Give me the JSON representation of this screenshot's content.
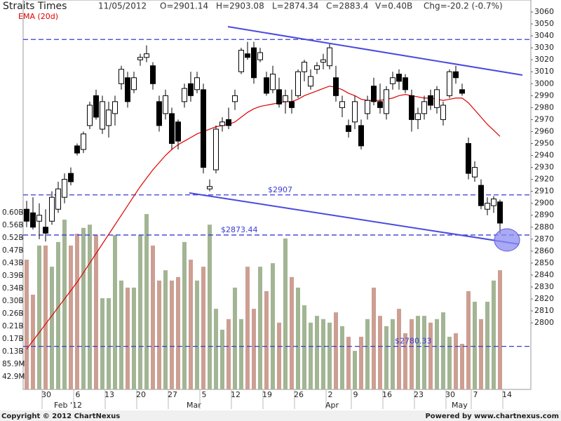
{
  "chart_data": {
    "type": "candlestick",
    "title": "Straits Times",
    "header": [
      "11/05/2012",
      "O=2901.14",
      "H=2903.08",
      "L=2874.34",
      "C=2883.4",
      "V=0.40B",
      "Chg=-20.2 (-0.7%)"
    ],
    "categories": [
      null,
      null,
      null,
      "30",
      null,
      null,
      null,
      null,
      "6",
      null,
      null,
      null,
      null,
      "13",
      null,
      null,
      null,
      null,
      "20",
      null,
      null,
      null,
      null,
      "27",
      null,
      null,
      null,
      null,
      "5",
      null,
      null,
      null,
      null,
      "12",
      null,
      null,
      null,
      null,
      "19",
      null,
      null,
      null,
      null,
      "26",
      null,
      null,
      null,
      null,
      "2",
      null,
      null,
      null,
      "9",
      null,
      null,
      null,
      null,
      "16",
      null,
      null,
      null,
      null,
      "23",
      null,
      null,
      null,
      null,
      "30",
      null,
      null,
      null,
      "7",
      null,
      null,
      null,
      null,
      "14"
    ],
    "months": [
      null,
      null,
      null,
      null,
      null,
      "Feb '12",
      null,
      null,
      null,
      null,
      null,
      null,
      null,
      null,
      null,
      null,
      null,
      null,
      null,
      null,
      null,
      null,
      null,
      null,
      null,
      null,
      "Mar",
      null,
      null,
      null,
      null,
      null,
      null,
      null,
      null,
      null,
      null,
      null,
      null,
      null,
      null,
      null,
      null,
      null,
      null,
      null,
      null,
      null,
      "Apr",
      null,
      null,
      null,
      null,
      null,
      null,
      null,
      null,
      null,
      null,
      null,
      null,
      null,
      null,
      null,
      null,
      null,
      null,
      null,
      "May",
      null,
      null,
      null,
      null,
      null,
      null,
      null,
      null
    ],
    "ohlc": [
      [
        2895,
        2902,
        2880,
        2885
      ],
      [
        2892,
        2905,
        2878,
        2880
      ],
      [
        2885,
        2900,
        2870,
        2890
      ],
      [
        2880,
        2895,
        2868,
        2875
      ],
      [
        2885,
        2910,
        2882,
        2905
      ],
      [
        2895,
        2918,
        2892,
        2912
      ],
      [
        2905,
        2925,
        2900,
        2920
      ],
      [
        2925,
        2930,
        2915,
        2918
      ],
      [
        2948,
        2950,
        2940,
        2942
      ],
      [
        2945,
        2960,
        2942,
        2958
      ],
      [
        2965,
        2985,
        2962,
        2982
      ],
      [
        2990,
        2995,
        2970,
        2972
      ],
      [
        2962,
        2990,
        2958,
        2985
      ],
      [
        2965,
        2985,
        2955,
        2978
      ],
      [
        2975,
        2990,
        2965,
        2985
      ],
      [
        3000,
        3015,
        2995,
        3012
      ],
      [
        3005,
        3010,
        2980,
        2985
      ],
      [
        2995,
        3010,
        2992,
        3005
      ],
      [
        3020,
        3025,
        3015,
        3022
      ],
      [
        3022,
        3032,
        3018,
        3025
      ],
      [
        3015,
        3018,
        2995,
        3000
      ],
      [
        2985,
        2990,
        2960,
        2965
      ],
      [
        2975,
        2995,
        2970,
        2990
      ],
      [
        2975,
        2980,
        2945,
        2950
      ],
      [
        2968,
        2970,
        2945,
        2952
      ],
      [
        2985,
        3000,
        2980,
        2996
      ],
      [
        3000,
        3010,
        2985,
        2990
      ],
      [
        2995,
        3010,
        2992,
        3005
      ],
      [
        2995,
        3000,
        2925,
        2930
      ],
      [
        2912,
        2920,
        2910,
        2914
      ],
      [
        2928,
        2965,
        2925,
        2962
      ],
      [
        2965,
        2972,
        2960,
        2968
      ],
      [
        2970,
        2980,
        2962,
        2965
      ],
      [
        2985,
        2995,
        2978,
        2990
      ],
      [
        3010,
        3030,
        3008,
        3028
      ],
      [
        3025,
        3035,
        3020,
        3022
      ],
      [
        3030,
        3035,
        3000,
        3005
      ],
      [
        3020,
        3030,
        3018,
        3026
      ],
      [
        3005,
        3010,
        2990,
        2992
      ],
      [
        2995,
        3015,
        2992,
        3008
      ],
      [
        2995,
        3005,
        2980,
        2983
      ],
      [
        2985,
        2995,
        2975,
        2990
      ],
      [
        2985,
        2995,
        2975,
        2980
      ],
      [
        2990,
        3012,
        2988,
        3010
      ],
      [
        3010,
        3020,
        3002,
        3018
      ],
      [
        2998,
        3012,
        2995,
        3006
      ],
      [
        3012,
        3018,
        3008,
        3015
      ],
      [
        3018,
        3025,
        3012,
        3020
      ],
      [
        3015,
        3033,
        3012,
        3030
      ],
      [
        3005,
        3015,
        2985,
        2990
      ],
      [
        2980,
        2990,
        2972,
        2985
      ],
      [
        2965,
        2970,
        2955,
        2960
      ],
      [
        2968,
        2990,
        2962,
        2985
      ],
      [
        2965,
        2970,
        2945,
        2948
      ],
      [
        2975,
        2990,
        2970,
        2986
      ],
      [
        2998,
        3005,
        2982,
        2985
      ],
      [
        2985,
        3000,
        2975,
        2980
      ],
      [
        2975,
        2998,
        2970,
        2995
      ],
      [
        3000,
        3010,
        2995,
        3005
      ],
      [
        3008,
        3012,
        2995,
        3002
      ],
      [
        3005,
        3008,
        2992,
        2995
      ],
      [
        2990,
        2995,
        2960,
        2970
      ],
      [
        2970,
        2980,
        2962,
        2975
      ],
      [
        2975,
        2990,
        2970,
        2985
      ],
      [
        2990,
        2995,
        2978,
        2982
      ],
      [
        2980,
        2998,
        2975,
        2995
      ],
      [
        2970,
        2985,
        2965,
        2982
      ],
      [
        2990,
        3012,
        2988,
        3010
      ],
      [
        3010,
        3015,
        3000,
        3005
      ],
      [
        2995,
        3000,
        2990,
        2992
      ],
      [
        2950,
        2955,
        2920,
        2925
      ],
      [
        2922,
        2935,
        2918,
        2930
      ],
      [
        2915,
        2920,
        2895,
        2898
      ],
      [
        2895,
        2905,
        2890,
        2900
      ],
      [
        2898,
        2906,
        2892,
        2903.6
      ],
      [
        2901.14,
        2903.08,
        2874.34,
        2883.4
      ],
      null
    ],
    "up_color": "#ffffff",
    "down_color": "#000000",
    "ema": {
      "name": "EMA (20d)",
      "color": "#e00000",
      "values": [
        2778,
        2785,
        2792,
        2799,
        2806,
        2813,
        2820,
        2827,
        2834,
        2842,
        2850,
        2858,
        2866,
        2874,
        2882,
        2890,
        2898,
        2906,
        2914,
        2921,
        2928,
        2934,
        2940,
        2945,
        2949,
        2952,
        2955,
        2958,
        2960,
        2962,
        2964,
        2965,
        2966,
        2968,
        2972,
        2976,
        2979,
        2981,
        2982,
        2983,
        2984,
        2985,
        2985,
        2987,
        2990,
        2992,
        2994,
        2996,
        2998,
        2997,
        2995,
        2992,
        2990,
        2987,
        2986,
        2986,
        2986,
        2987,
        2988,
        2990,
        2991,
        2990,
        2989,
        2988,
        2988,
        2987,
        2986,
        2987,
        2988,
        2988,
        2984,
        2978,
        2972,
        2966,
        2961,
        2956,
        null
      ]
    },
    "volume": {
      "up_color": "#a2b594",
      "down_color": "#cc9f92",
      "values": [
        441,
        322,
        489,
        489,
        417,
        501,
        577,
        489,
        529,
        549,
        560,
        525,
        310,
        310,
        525,
        370,
        346,
        346,
        525,
        596,
        489,
        370,
        405,
        370,
        382,
        501,
        441,
        370,
        417,
        560,
        274,
        203,
        239,
        346,
        239,
        417,
        274,
        417,
        334,
        429,
        227,
        513,
        382,
        346,
        286,
        227,
        250,
        239,
        227,
        262,
        215,
        179,
        131,
        179,
        239,
        346,
        250,
        215,
        239,
        274,
        191,
        239,
        250,
        250,
        227,
        239,
        262,
        179,
        191,
        155,
        334,
        298,
        239,
        298,
        370,
        405,
        null
      ]
    },
    "ylim": [
      2750,
      3070
    ],
    "yticks": [
      2800,
      2810,
      2820,
      2830,
      2840,
      2850,
      2860,
      2870,
      2880,
      2890,
      2900,
      2910,
      2920,
      2930,
      2940,
      2950,
      2960,
      2970,
      2980,
      2990,
      3000,
      3010,
      3020,
      3030,
      3040,
      3050,
      3060
    ],
    "vlim": [
      0,
      610
    ],
    "vticks": [
      {
        "value": 42.93,
        "label": "42.9M"
      },
      {
        "value": 85.86,
        "label": "85.9M"
      },
      {
        "value": 128.79,
        "label": "0.13B"
      },
      {
        "value": 171.72,
        "label": "0.17B"
      },
      {
        "value": 214.65,
        "label": "0.21B"
      },
      {
        "value": 257.58,
        "label": "0.26B"
      },
      {
        "value": 300.51,
        "label": "0.30B"
      },
      {
        "value": 343.44,
        "label": "0.34B"
      },
      {
        "value": 386.37,
        "label": "0.39B"
      },
      {
        "value": 429.3,
        "label": "0.43B"
      },
      {
        "value": 472.23,
        "label": "0.47B"
      },
      {
        "value": 515.16,
        "label": "0.52B"
      },
      {
        "value": 558.09,
        "label": "0.56B"
      },
      {
        "value": 601.02,
        "label": "0.60B"
      }
    ],
    "levels": [
      {
        "value": 3037
      },
      {
        "value": 2907,
        "label": "$2907"
      },
      {
        "value": 2873.44,
        "label": "$2873.44"
      },
      {
        "value": 2780.33,
        "label": "$2780.33"
      }
    ],
    "footer_left": "Copyright © 2012 ChartNexus",
    "footer_right": "Powered by www.chartnexus.com"
  }
}
